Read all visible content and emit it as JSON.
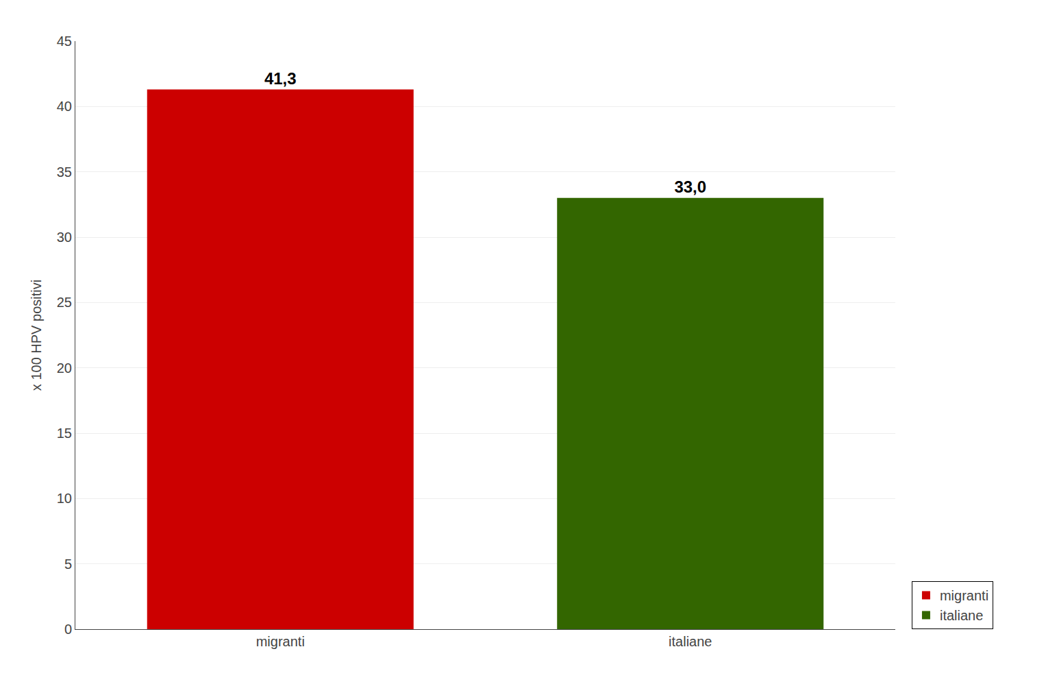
{
  "chart_data": {
    "type": "bar",
    "categories": [
      "migranti",
      "italiane"
    ],
    "values": [
      41.3,
      33.0
    ],
    "value_labels": [
      "41,3",
      "33,0"
    ],
    "data_labels": true,
    "colors": [
      "#cc0000",
      "#336600"
    ],
    "ylabel": "x 100 HPV positivi",
    "ylim": [
      0,
      45
    ],
    "yticks": [
      0,
      5,
      10,
      15,
      20,
      25,
      30,
      35,
      40,
      45
    ],
    "grid": true,
    "legend": "lower right"
  }
}
